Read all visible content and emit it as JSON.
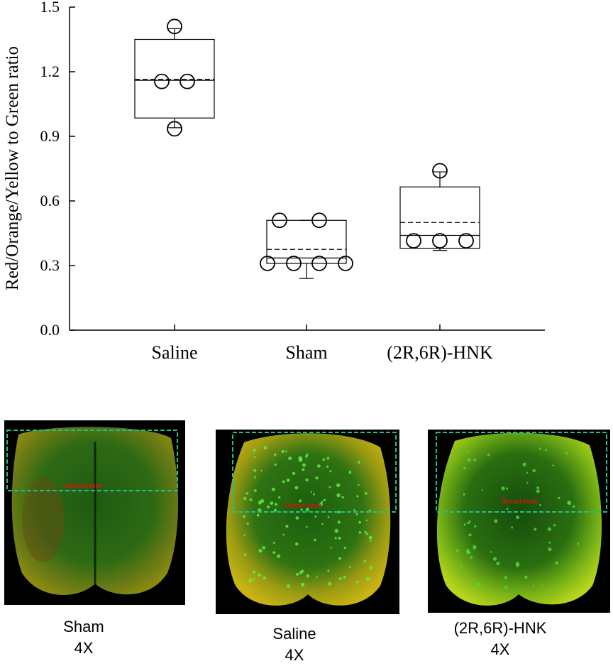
{
  "chart_data": {
    "type": "box",
    "ylabel": "Red/Orange/Yellow to Green ratio",
    "ylim": [
      0,
      1.5
    ],
    "yticks": [
      "0.0",
      "0.3",
      "0.6",
      "0.9",
      "1.2",
      "1.5"
    ],
    "categories": [
      "Saline",
      "Sham",
      "(2R,6R)-HNK"
    ],
    "boxes": [
      {
        "q1": 0.985,
        "median": 1.16,
        "mean": 1.165,
        "q3": 1.35,
        "whisker_low": 0.94,
        "whisker_high": 1.4,
        "points": [
          1.41,
          1.155,
          1.155,
          0.935
        ]
      },
      {
        "q1": 0.31,
        "median": 0.335,
        "mean": 0.375,
        "q3": 0.51,
        "whisker_low": 0.24,
        "whisker_high": 0.51,
        "points": [
          0.51,
          0.51,
          0.31,
          0.31,
          0.31,
          0.31
        ]
      },
      {
        "q1": 0.38,
        "median": 0.44,
        "mean": 0.5,
        "q3": 0.665,
        "whisker_low": 0.37,
        "whisker_high": 0.735,
        "points": [
          0.74,
          0.415,
          0.415,
          0.415
        ]
      }
    ],
    "grid": false,
    "legend": "none"
  },
  "images": {
    "region_label": "Dorsal Horn",
    "panels": [
      {
        "caption_line1": "Sham",
        "caption_line2": "4X"
      },
      {
        "caption_line1": "Saline",
        "caption_line2": "4X"
      },
      {
        "caption_line1": "(2R,6R)-HNK",
        "caption_line2": "4X"
      }
    ],
    "colors": {
      "box_stroke": "#000000",
      "roi_box": "#22c089",
      "label": "#e01010"
    }
  }
}
